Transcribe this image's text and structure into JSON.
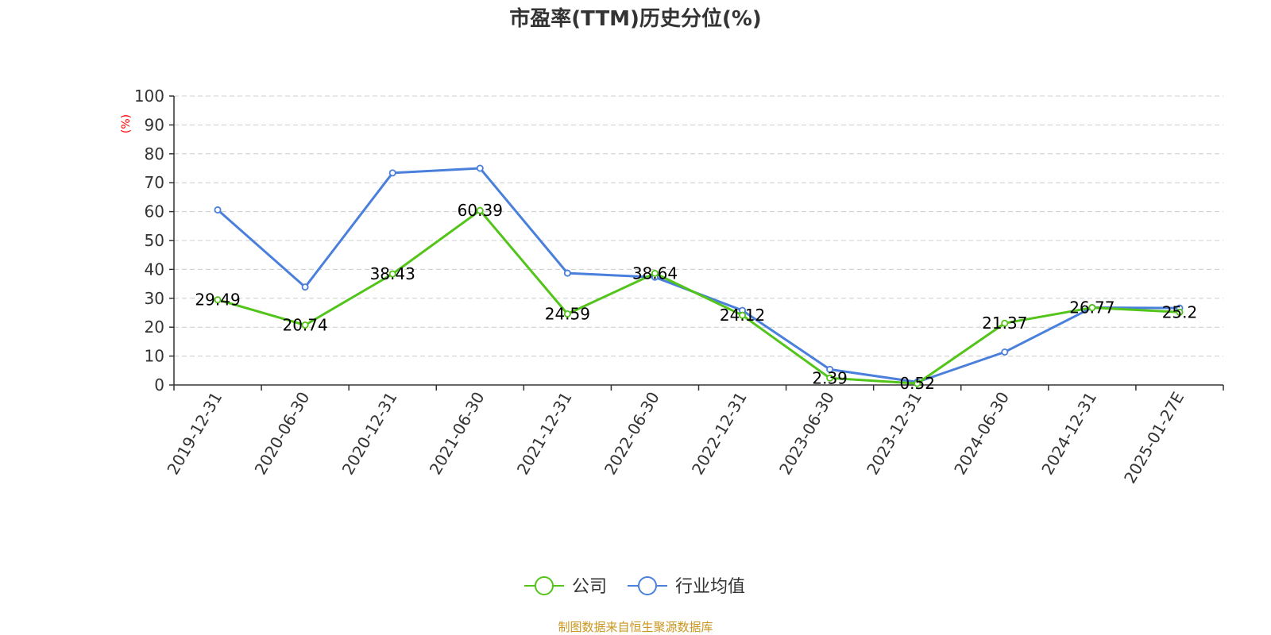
{
  "chart_data": {
    "type": "line",
    "title": "市盈率(TTM)历史分位(%)",
    "ylabel": "(%)",
    "xlabel": "",
    "ylim": [
      0,
      100
    ],
    "yticks": [
      0,
      10,
      20,
      30,
      40,
      50,
      60,
      70,
      80,
      90,
      100
    ],
    "grid": true,
    "legend_position": "bottom-center",
    "categories": [
      "2019-12-31",
      "2020-06-30",
      "2020-12-31",
      "2021-06-30",
      "2021-12-31",
      "2022-06-30",
      "2022-12-31",
      "2023-06-30",
      "2023-12-31",
      "2024-06-30",
      "2024-12-31",
      "2025-01-27E"
    ],
    "series": [
      {
        "name": "公司",
        "color": "#52c41a",
        "values": [
          29.49,
          20.74,
          38.43,
          60.39,
          24.59,
          38.64,
          24.12,
          2.39,
          0.52,
          21.37,
          26.77,
          25.2
        ],
        "labels": [
          "29.49",
          "20.74",
          "38.43",
          "60.39",
          "24.59",
          "38.64",
          "24.12",
          "2.39",
          "0.52",
          "21.37",
          "26.77",
          "25.2"
        ]
      },
      {
        "name": "行业均值",
        "color": "#4a7fdc",
        "values": [
          60.6,
          33.9,
          73.4,
          75.0,
          38.7,
          37.3,
          25.8,
          5.4,
          1.0,
          11.4,
          26.8,
          26.6
        ]
      }
    ],
    "unit_color": "#ff0000",
    "source": "制图数据来自恒生聚源数据库",
    "source_color": "#c8961e"
  }
}
